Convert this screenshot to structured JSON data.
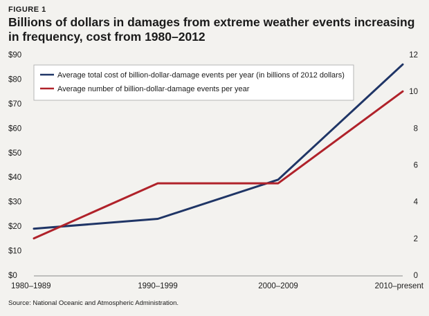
{
  "figure_label": "FIGURE 1",
  "source": "Source: National Oceanic and Atmospheric Administration.",
  "colors": {
    "navy": "#1f3566",
    "red": "#b0222a",
    "axis": "#8a8a8a",
    "background": "#f3f2ef"
  },
  "chart_data": {
    "type": "line",
    "title": "Billions of dollars in damages from extreme weather events increasing in frequency, cost from 1980–2012",
    "categories": [
      "1980–1989",
      "1990–1999",
      "2000–2009",
      "2010–present"
    ],
    "y_left": {
      "ticks": [
        "$0",
        "$10",
        "$20",
        "$30",
        "$40",
        "$50",
        "$60",
        "$70",
        "$80",
        "$90"
      ],
      "ylim": [
        0,
        90
      ]
    },
    "y_right": {
      "ticks": [
        "0",
        "2",
        "4",
        "6",
        "8",
        "10",
        "12"
      ],
      "ylim": [
        0,
        12
      ]
    },
    "series": [
      {
        "name": "Average total cost of billion-dollar-damage events per year (in billions of 2012  dollars)",
        "axis": "left",
        "color": "#1f3566",
        "values": [
          19,
          23,
          39,
          86
        ]
      },
      {
        "name": "Average number of billion-dollar-damage events per year",
        "axis": "right",
        "color": "#b0222a",
        "values": [
          2,
          5,
          5,
          10
        ]
      }
    ],
    "legend": "top-left"
  }
}
